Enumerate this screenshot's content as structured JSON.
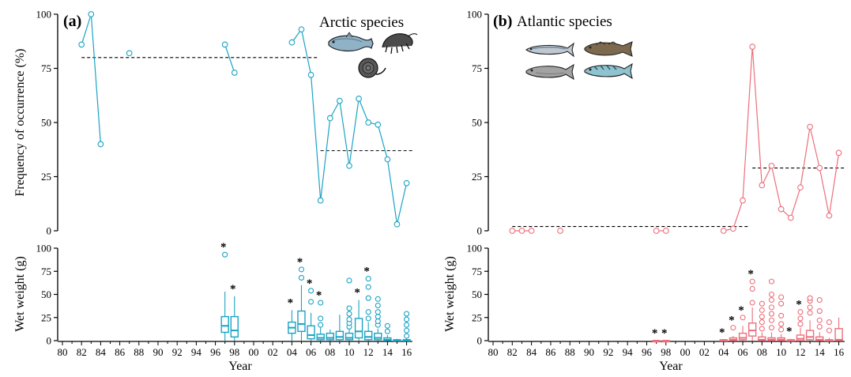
{
  "figure": {
    "x_axis_label": "Year",
    "x_tick_labels": [
      "80",
      "82",
      "84",
      "86",
      "88",
      "90",
      "92",
      "94",
      "96",
      "98",
      "00",
      "02",
      "04",
      "06",
      "08",
      "10",
      "12",
      "14",
      "16"
    ],
    "freq_ylabel": "Frequency of occurrence (%)",
    "wet_ylabel": "Wet weight (g)",
    "freq_ticks": [
      "0",
      "25",
      "50",
      "75",
      "100"
    ],
    "wet_ticks": [
      "0",
      "25",
      "50",
      "75",
      "100"
    ]
  },
  "chart_data": [
    {
      "type": "line",
      "panel": "a",
      "tag": "(a)",
      "title": "Arctic species",
      "color": "#1aa3c4",
      "xlabel": "Year",
      "ylabel": "Frequency of occurrence (%)",
      "ylim": [
        0,
        100
      ],
      "x_range_years": [
        1980,
        2017
      ],
      "segments": [
        [
          [
            1982,
            86
          ],
          [
            1983,
            100
          ],
          [
            1984,
            40
          ]
        ],
        [
          [
            1987,
            82
          ]
        ],
        [
          [
            1997,
            86
          ],
          [
            1998,
            73
          ]
        ],
        [
          [
            2004,
            87
          ],
          [
            2005,
            93
          ],
          [
            2006,
            72
          ],
          [
            2007,
            14
          ],
          [
            2008,
            52
          ],
          [
            2009,
            60
          ],
          [
            2010,
            30
          ],
          [
            2011,
            61
          ],
          [
            2012,
            50
          ],
          [
            2013,
            49
          ],
          [
            2014,
            33
          ],
          [
            2015,
            3
          ],
          [
            2016,
            22
          ]
        ]
      ],
      "mean_lines": [
        {
          "x": [
            1982,
            2006
          ],
          "y": 80
        },
        {
          "x": [
            2007,
            2016
          ],
          "y": 37
        }
      ]
    },
    {
      "type": "line",
      "panel": "b",
      "tag": "(b)",
      "title": "Atlantic species",
      "color": "#ec6f7b",
      "xlabel": "Year",
      "ylabel": "Frequency of occurrence (%)",
      "ylim": [
        0,
        100
      ],
      "x_range_years": [
        1980,
        2017
      ],
      "segments": [
        [
          [
            1982,
            0
          ],
          [
            1983,
            0
          ],
          [
            1984,
            0
          ]
        ],
        [
          [
            1987,
            0
          ]
        ],
        [
          [
            1997,
            0
          ],
          [
            1998,
            0
          ]
        ],
        [
          [
            2004,
            0
          ],
          [
            2005,
            1
          ],
          [
            2006,
            14
          ],
          [
            2007,
            85
          ],
          [
            2008,
            21
          ],
          [
            2009,
            30
          ],
          [
            2010,
            10
          ],
          [
            2011,
            6
          ],
          [
            2012,
            20
          ],
          [
            2013,
            48
          ],
          [
            2014,
            29
          ],
          [
            2015,
            7
          ],
          [
            2016,
            36
          ]
        ]
      ],
      "mean_lines": [
        {
          "x": [
            1982,
            2006
          ],
          "y": 2
        },
        {
          "x": [
            2007,
            2016
          ],
          "y": 29
        }
      ]
    },
    {
      "type": "box",
      "panel": "a",
      "color": "#1aa3c4",
      "xlabel": "Year",
      "ylabel": "Wet weight (g)",
      "ylim": [
        0,
        100
      ],
      "boxes": [
        {
          "year": 1997,
          "min": 0,
          "q1": 9,
          "median": 16,
          "q3": 26,
          "max": 53,
          "outliers": [
            93
          ],
          "star": true
        },
        {
          "year": 1998,
          "min": 0,
          "q1": 4,
          "median": 11,
          "q3": 26,
          "max": 48,
          "outliers": [],
          "star": true
        },
        {
          "year": 2004,
          "min": 0,
          "q1": 8,
          "median": 14,
          "q3": 20,
          "max": 33,
          "outliers": [],
          "star": true
        },
        {
          "year": 2005,
          "min": 0,
          "q1": 10,
          "median": 18,
          "q3": 32,
          "max": 60,
          "outliers": [
            68,
            77
          ],
          "star": true
        },
        {
          "year": 2006,
          "min": 0,
          "q1": 2,
          "median": 6,
          "q3": 16,
          "max": 30,
          "outliers": [
            42,
            54
          ],
          "star": true
        },
        {
          "year": 2007,
          "min": 0,
          "q1": 1,
          "median": 3,
          "q3": 7,
          "max": 14,
          "outliers": [
            17,
            24,
            41
          ],
          "star": true
        },
        {
          "year": 2008,
          "min": 0,
          "q1": 1,
          "median": 3,
          "q3": 8,
          "max": 12,
          "outliers": [],
          "star": false
        },
        {
          "year": 2009,
          "min": 0,
          "q1": 1,
          "median": 4,
          "q3": 10,
          "max": 28,
          "outliers": [],
          "star": false
        },
        {
          "year": 2010,
          "min": 0,
          "q1": 1,
          "median": 3,
          "q3": 8,
          "max": 12,
          "outliers": [
            15,
            19,
            23,
            29,
            35,
            65
          ],
          "star": false
        },
        {
          "year": 2011,
          "min": 0,
          "q1": 3,
          "median": 10,
          "q3": 24,
          "max": 44,
          "outliers": [],
          "star": true
        },
        {
          "year": 2012,
          "min": 0,
          "q1": 1,
          "median": 4,
          "q3": 10,
          "max": 20,
          "outliers": [
            24,
            31,
            46,
            58,
            67
          ],
          "star": true
        },
        {
          "year": 2013,
          "min": 0,
          "q1": 1,
          "median": 3,
          "q3": 8,
          "max": 13,
          "outliers": [
            17,
            21,
            26,
            31,
            38,
            45
          ],
          "star": false
        },
        {
          "year": 2014,
          "min": 0,
          "q1": 0,
          "median": 1,
          "q3": 3,
          "max": 6,
          "outliers": [
            10,
            16
          ],
          "star": false
        },
        {
          "year": 2015,
          "min": 0,
          "q1": 0,
          "median": 0,
          "q3": 1,
          "max": 2,
          "outliers": [],
          "star": false
        },
        {
          "year": 2016,
          "min": 0,
          "q1": 0,
          "median": 0,
          "q3": 1,
          "max": 3,
          "outliers": [
            5,
            11,
            17,
            23,
            29
          ],
          "star": false
        }
      ]
    },
    {
      "type": "box",
      "panel": "b",
      "color": "#ec6f7b",
      "xlabel": "Year",
      "ylabel": "Wet weight (g)",
      "ylim": [
        0,
        100
      ],
      "boxes": [
        {
          "year": 1997,
          "min": 0,
          "q1": 0,
          "median": 0,
          "q3": 0,
          "max": 0,
          "outliers": [],
          "star": true
        },
        {
          "year": 1998,
          "min": 0,
          "q1": 0,
          "median": 0,
          "q3": 0,
          "max": 0,
          "outliers": [],
          "star": true
        },
        {
          "year": 2004,
          "min": 0,
          "q1": 0,
          "median": 0,
          "q3": 1,
          "max": 1,
          "outliers": [],
          "star": true
        },
        {
          "year": 2005,
          "min": 0,
          "q1": 0,
          "median": 1,
          "q3": 3,
          "max": 5,
          "outliers": [
            14
          ],
          "star": true
        },
        {
          "year": 2006,
          "min": 0,
          "q1": 1,
          "median": 3,
          "q3": 8,
          "max": 16,
          "outliers": [
            25
          ],
          "star": true
        },
        {
          "year": 2007,
          "min": 0,
          "q1": 5,
          "median": 11,
          "q3": 19,
          "max": 36,
          "outliers": [
            41,
            56,
            64
          ],
          "star": true
        },
        {
          "year": 2008,
          "min": 0,
          "q1": 0,
          "median": 1,
          "q3": 4,
          "max": 9,
          "outliers": [
            13,
            20,
            26,
            33,
            40
          ],
          "star": false
        },
        {
          "year": 2009,
          "min": 0,
          "q1": 0,
          "median": 1,
          "q3": 3,
          "max": 9,
          "outliers": [
            14,
            22,
            29,
            36,
            44,
            50,
            64
          ],
          "star": false
        },
        {
          "year": 2010,
          "min": 0,
          "q1": 0,
          "median": 1,
          "q3": 3,
          "max": 7,
          "outliers": [
            12,
            18,
            27,
            40,
            47
          ],
          "star": false
        },
        {
          "year": 2011,
          "min": 0,
          "q1": 0,
          "median": 0,
          "q3": 1,
          "max": 2,
          "outliers": [],
          "star": true
        },
        {
          "year": 2012,
          "min": 0,
          "q1": 0,
          "median": 2,
          "q3": 6,
          "max": 14,
          "outliers": [
            18,
            24,
            31
          ],
          "star": true
        },
        {
          "year": 2013,
          "min": 0,
          "q1": 1,
          "median": 4,
          "q3": 11,
          "max": 22,
          "outliers": [
            30,
            36,
            43,
            46
          ],
          "star": false
        },
        {
          "year": 2014,
          "min": 0,
          "q1": 0,
          "median": 1,
          "q3": 4,
          "max": 9,
          "outliers": [
            15,
            22,
            32,
            44
          ],
          "star": false
        },
        {
          "year": 2015,
          "min": 0,
          "q1": 0,
          "median": 0,
          "q3": 1,
          "max": 3,
          "outliers": [
            11,
            20
          ],
          "star": false
        },
        {
          "year": 2016,
          "min": 0,
          "q1": 0,
          "median": 1,
          "q3": 13,
          "max": 25,
          "outliers": [],
          "star": false
        }
      ]
    }
  ],
  "icons": {
    "arctic": [
      "polar-cod-icon",
      "amphipod-icon",
      "snail-icon"
    ],
    "atlantic": [
      "capelin-icon",
      "cod-icon",
      "herring-icon",
      "mackerel-icon"
    ]
  }
}
